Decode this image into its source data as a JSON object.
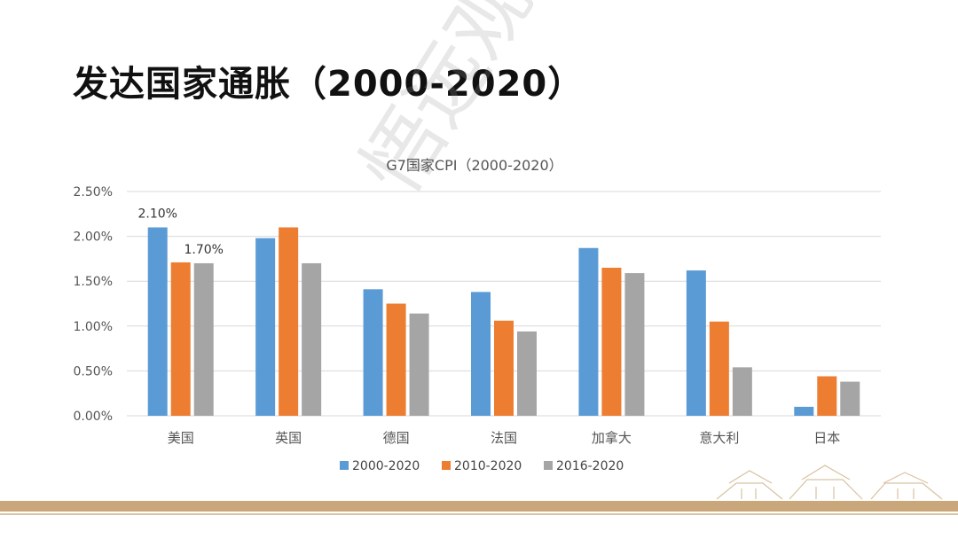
{
  "slide": {
    "title": "发达国家通胀（2000-2020）",
    "watermark": "悟远观察"
  },
  "colors": {
    "series": [
      "#5b9bd5",
      "#ed7d31",
      "#a5a5a5"
    ],
    "grid": "#d9d9d9",
    "footer": "#caa67b"
  },
  "chart_data": {
    "type": "bar",
    "title": "G7国家CPI（2000-2020）",
    "categories": [
      "美国",
      "英国",
      "德国",
      "法国",
      "加拿大",
      "意大利",
      "日本"
    ],
    "series": [
      {
        "name": "2000-2020",
        "values": [
          2.1,
          1.98,
          1.41,
          1.38,
          1.87,
          1.62,
          0.1
        ]
      },
      {
        "name": "2010-2020",
        "values": [
          1.71,
          2.1,
          1.25,
          1.06,
          1.65,
          1.05,
          0.44
        ]
      },
      {
        "name": "2016-2020",
        "values": [
          1.7,
          1.7,
          1.14,
          0.94,
          1.59,
          0.54,
          0.38
        ]
      }
    ],
    "y_ticks": [
      "0.00%",
      "0.50%",
      "1.00%",
      "1.50%",
      "2.00%",
      "2.50%"
    ],
    "ylim": [
      0,
      2.5
    ],
    "unit": "%",
    "grid": true,
    "legend_position": "bottom",
    "data_labels": [
      {
        "series": 0,
        "category": 0,
        "text": "2.10%"
      },
      {
        "series": 2,
        "category": 0,
        "text": "1.70%"
      }
    ]
  }
}
